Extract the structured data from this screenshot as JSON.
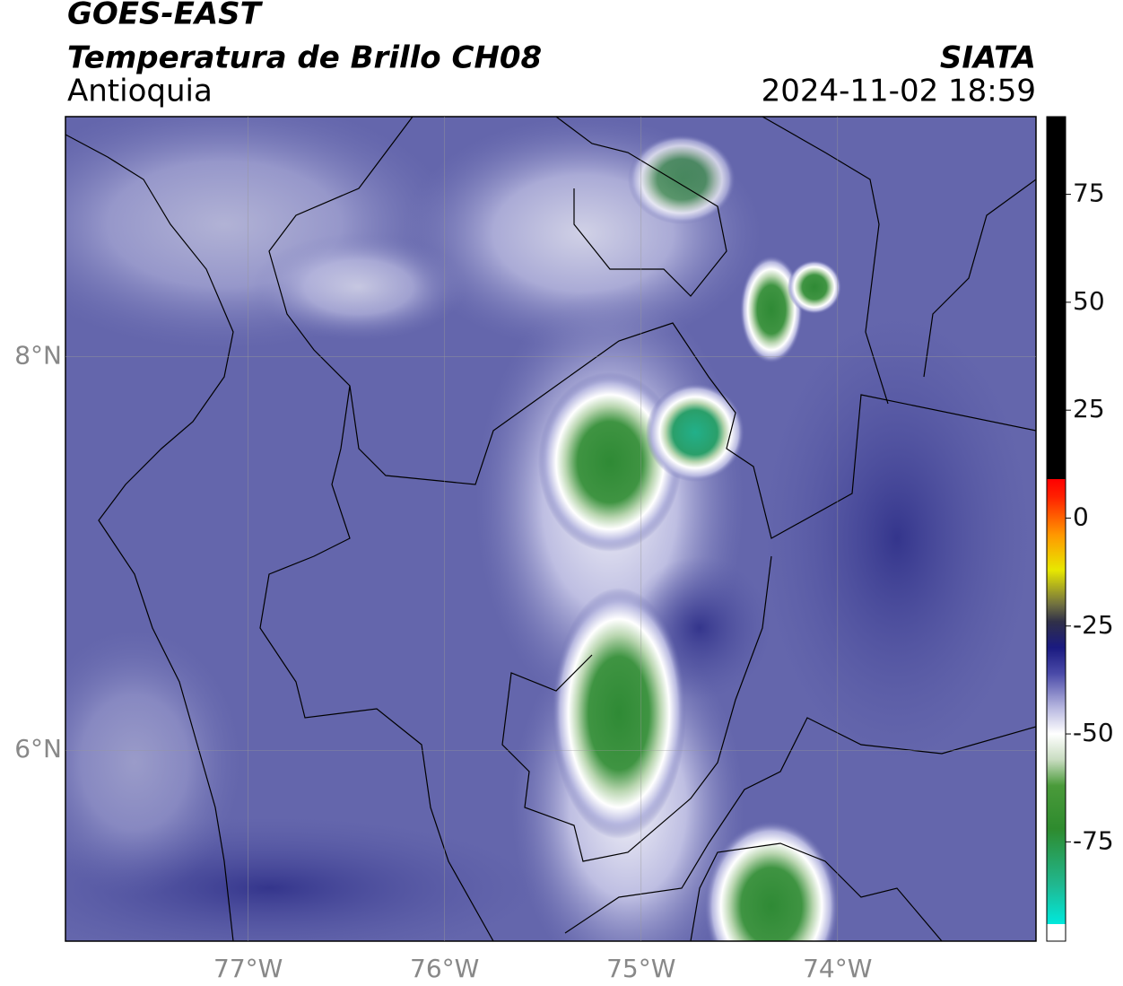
{
  "header": {
    "satellite": "GOES-EAST",
    "product": "Temperatura de Brillo CH08",
    "region": "Antioquia",
    "source": "SIATA",
    "datetime": "2024-11-02 18:59"
  },
  "map": {
    "xlim": [
      -77.93,
      -72.99
    ],
    "ylim": [
      5.03,
      9.22
    ],
    "xticks": [
      {
        "value": -77,
        "label": "77°W"
      },
      {
        "value": -76,
        "label": "76°W"
      },
      {
        "value": -75,
        "label": "75°W"
      },
      {
        "value": -74,
        "label": "74°W"
      }
    ],
    "yticks": [
      {
        "value": 8,
        "label": "8°N"
      },
      {
        "value": 6,
        "label": "6°N"
      }
    ],
    "grid": true
  },
  "colorbar": {
    "range": [
      -98,
      93
    ],
    "ticks": [
      75,
      50,
      25,
      0,
      -25,
      -50,
      -75
    ],
    "stops": [
      {
        "value": -98,
        "color": "#ffffff"
      },
      {
        "value": -94,
        "color": "#ffffff"
      },
      {
        "value": -94,
        "color": "#00e8dc"
      },
      {
        "value": -85,
        "color": "#20b890"
      },
      {
        "value": -72,
        "color": "#2e8b2e"
      },
      {
        "value": -62,
        "color": "#4a9a3a"
      },
      {
        "value": -56,
        "color": "#c8dcc0"
      },
      {
        "value": -50,
        "color": "#ffffff"
      },
      {
        "value": -44,
        "color": "#b8b8e0"
      },
      {
        "value": -36,
        "color": "#4a4aa8"
      },
      {
        "value": -30,
        "color": "#1a1a80"
      },
      {
        "value": -24,
        "color": "#303048"
      },
      {
        "value": -20,
        "color": "#707040"
      },
      {
        "value": -12,
        "color": "#e8e800"
      },
      {
        "value": -4,
        "color": "#ff9900"
      },
      {
        "value": 5,
        "color": "#ff2000"
      },
      {
        "value": 9,
        "color": "#ff0000"
      },
      {
        "value": 9,
        "color": "#000000"
      },
      {
        "value": 93,
        "color": "#000000"
      }
    ]
  }
}
